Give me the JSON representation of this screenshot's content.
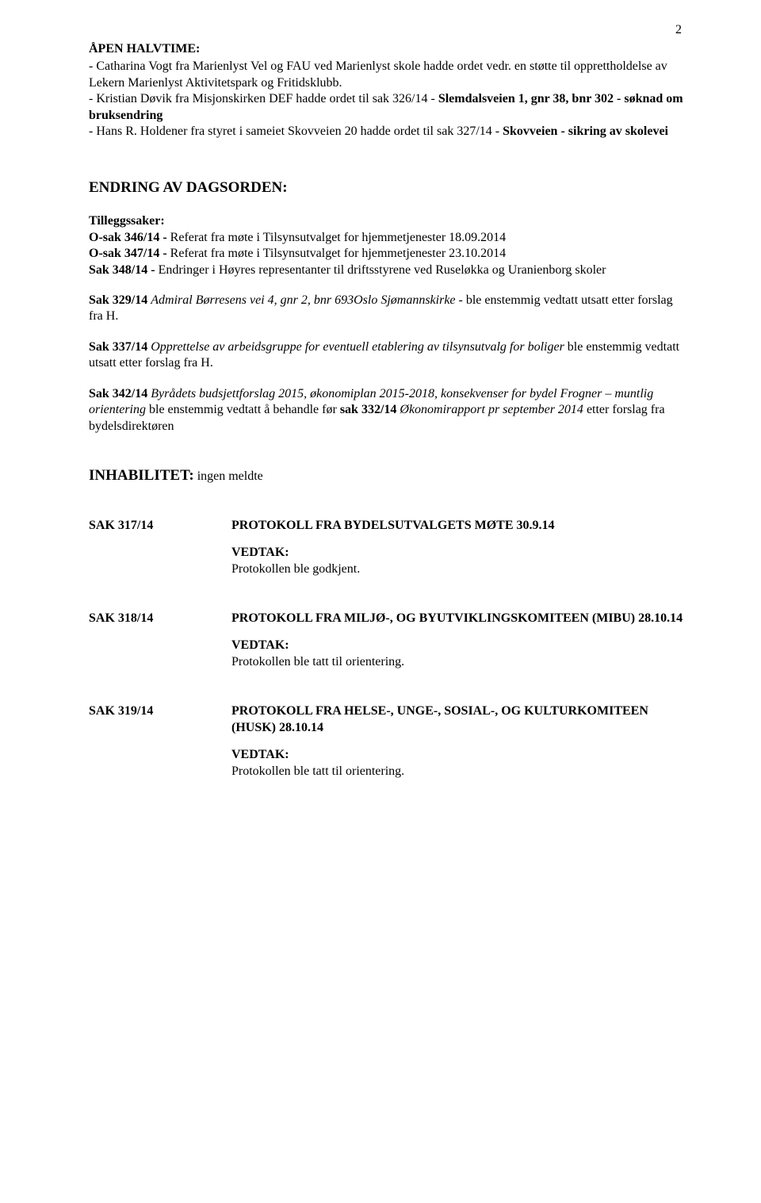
{
  "pageNumber": "2",
  "openHalvtime": {
    "heading": "ÅPEN HALVTIME:",
    "lines": [
      "- Catharina Vogt fra Marienlyst Vel og FAU ved Marienlyst skole hadde ordet vedr. en støtte til opprettholdelse av Lekern Marienlyst Aktivitetspark og Fritidsklubb.",
      "- Kristian Døvik fra Misjonskirken DEF hadde ordet til sak 326/14 -",
      "- Hans R. Holdener fra styret i sameiet Skovveien 20 hadde ordet til sak 327/14 -"
    ],
    "boldA": "Slemdalsveien 1, gnr 38, bnr 302 - søknad om bruksendring",
    "boldB": "Skovveien - sikring av skolevei"
  },
  "endring": {
    "heading": "ENDRING AV DAGSORDEN:",
    "tilleggHeading": "Tilleggssaker:",
    "items": [
      {
        "b": "O-sak 346/14 - ",
        "t": "Referat fra møte i Tilsynsutvalget for hjemmetjenester 18.09.2014"
      },
      {
        "b": "O-sak 347/14 - ",
        "t": "Referat fra møte i Tilsynsutvalget for hjemmetjenester 23.10.2014"
      }
    ],
    "sak348b": "Sak 348/14 - ",
    "sak348t": "Endringer i Høyres representanter til driftsstyrene ved Ruseløkka og Uranienborg skoler",
    "sak329b": "Sak 329/14 ",
    "sak329i": "Admiral Børresens vei 4, gnr 2, bnr 693Oslo Sjømannskirke ",
    "sak329t": " - ble enstemmig vedtatt utsatt etter forslag fra H.",
    "sak337b": "Sak 337/14 ",
    "sak337i": "Opprettelse av arbeidsgruppe for eventuell etablering av tilsynsutvalg for boliger",
    "sak337t": " ble enstemmig vedtatt utsatt etter forslag fra H.",
    "sak342b": "Sak 342/14 ",
    "sak342i": "Byrådets budsjettforslag 2015, økonomiplan 2015-2018, konsekvenser for bydel Frogner – muntlig orientering",
    "sak342mid": " ble enstemmig vedtatt å behandle før ",
    "sak342b2": "sak 332/14",
    "sak342i2": " Økonomirapport pr september 2014",
    "sak342end": " etter forslag fra bydelsdirektøren"
  },
  "inhab": {
    "heading": "INHABILITET:",
    "text": " ingen meldte"
  },
  "saks": [
    {
      "id": "SAK 317/14",
      "title": "PROTOKOLL FRA BYDELSUTVALGETS MØTE 30.9.14",
      "vedtakLabel": "VEDTAK:",
      "vedtakText": "Protokollen ble godkjent."
    },
    {
      "id": "SAK 318/14",
      "title": "PROTOKOLL FRA MILJØ-, OG BYUTVIKLINGSKOMITEEN (MIBU) 28.10.14",
      "vedtakLabel": "VEDTAK:",
      "vedtakText": "Protokollen ble tatt til orientering."
    },
    {
      "id": "SAK 319/14",
      "title": "PROTOKOLL FRA HELSE-, UNGE-, SOSIAL-, OG KULTURKOMITEEN (HUSK) 28.10.14",
      "vedtakLabel": "VEDTAK:",
      "vedtakText": "Protokollen ble tatt til orientering."
    }
  ]
}
